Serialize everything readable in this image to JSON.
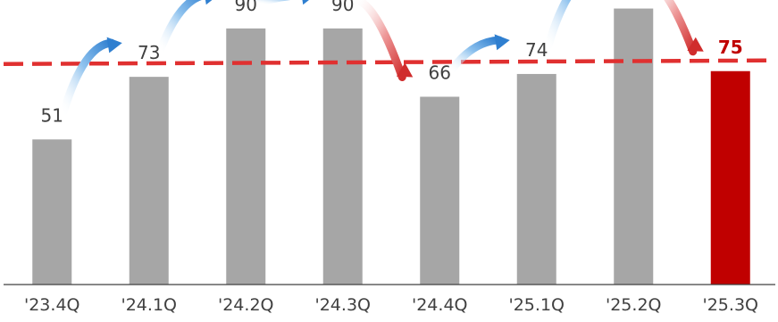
{
  "chart_data": {
    "type": "bar",
    "categories": [
      "'23.4Q",
      "'24.1Q",
      "'24.2Q",
      "'24.3Q",
      "'24.4Q",
      "'25.1Q",
      "'25.2Q",
      "'25.3Q"
    ],
    "values": [
      51,
      73,
      90,
      90,
      66,
      74,
      97,
      75
    ],
    "highlight_index": 7,
    "reference_line": {
      "style": "dashed"
    },
    "trend_arrows": [
      "up",
      "up",
      "flat",
      "down",
      "up",
      "up",
      "down"
    ],
    "ylim": [
      0,
      100
    ],
    "grid": false,
    "title": "",
    "xlabel": "",
    "ylabel": ""
  },
  "colors": {
    "bar": "#a6a6a6",
    "highlight_bar": "#c00000",
    "reference_line": "#e03030",
    "arrow_up": "#2f7fd0",
    "arrow_down": "#d02c2c",
    "label": "#404040",
    "highlight_label": "#c00000",
    "axis": "#404040"
  }
}
